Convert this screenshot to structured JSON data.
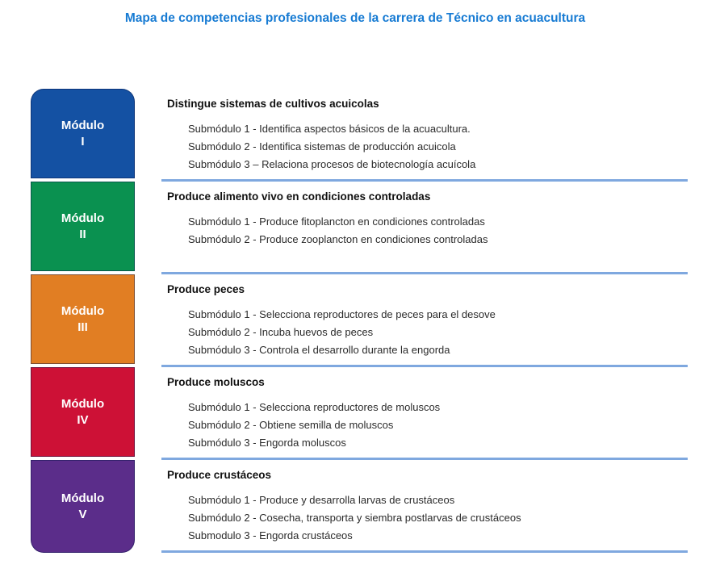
{
  "title": {
    "text": "Mapa de competencias profesionales de la carrera de Técnico en acuacultura",
    "color": "#177bd3"
  },
  "separator_color": "#7fa8df",
  "modules": [
    {
      "label_word": "Módulo",
      "numeral": "I",
      "color": "#1451a3",
      "competency": "Distingue sistemas de cultivos acuicolas",
      "submodules": [
        "Submódulo 1 - Identifica aspectos básicos de la acuacultura.",
        "Submódulo 2 - Identifica sistemas de producción acuicola",
        "Submódulo 3 – Relaciona procesos de biotecnología acuícola"
      ]
    },
    {
      "label_word": "Módulo",
      "numeral": "II",
      "color": "#0a9150",
      "competency": "Produce alimento vivo en condiciones controladas",
      "submodules": [
        "Submódulo 1 - Produce fitoplancton en condiciones controladas",
        "Submódulo 2 - Produce zooplancton en condiciones controladas"
      ]
    },
    {
      "label_word": "Módulo",
      "numeral": "III",
      "color": "#e17e23",
      "competency": "Produce peces",
      "submodules": [
        "Submódulo 1 - Selecciona reproductores de peces para el desove",
        "Submódulo 2 - Incuba huevos de peces",
        "Submódulo 3 - Controla el desarrollo durante la engorda"
      ]
    },
    {
      "label_word": "Módulo",
      "numeral": "IV",
      "color": "#cd1136",
      "competency": "Produce moluscos",
      "submodules": [
        "Submódulo 1 - Selecciona reproductores de moluscos",
        "Submódulo 2 - Obtiene semilla de moluscos",
        "Submódulo 3 - Engorda moluscos"
      ]
    },
    {
      "label_word": "Módulo",
      "numeral": "V",
      "color": "#5b2d8a",
      "competency": "Produce crustáceos",
      "submodules": [
        "Submódulo 1 - Produce y desarrolla larvas de crustáceos",
        "Submódulo 2 - Cosecha, transporta y siembra postlarvas de crustáceos",
        "Submodulo 3 - Engorda crustáceos"
      ]
    }
  ]
}
